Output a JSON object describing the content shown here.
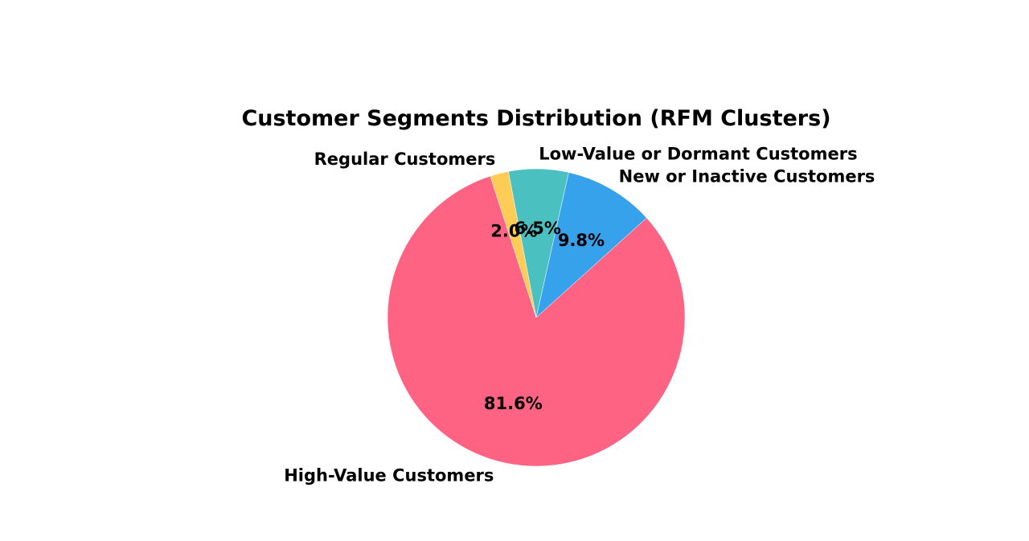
{
  "chart_data": {
    "type": "pie",
    "title": "Customer Segments Distribution (RFM Clusters)",
    "slices": [
      {
        "label": "High-Value Customers",
        "value": 81.6,
        "pct_label": "81.6%",
        "color": "#ff6384"
      },
      {
        "label": "New or Inactive Customers",
        "value": 9.8,
        "pct_label": "9.8%",
        "color": "#36a2eb"
      },
      {
        "label": "Low-Value or Dormant Customers",
        "value": 6.5,
        "pct_label": "6.5%",
        "color": "#4bc0c0"
      },
      {
        "label": "Regular Customers",
        "value": 2.0,
        "pct_label": "2.0%",
        "color": "#ffcd56"
      }
    ],
    "start_angle_deg": 108,
    "direction": "counterclockwise"
  }
}
